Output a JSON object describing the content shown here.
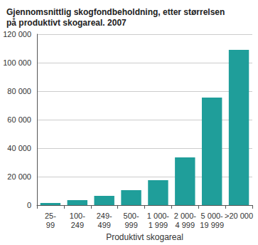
{
  "chart_data": {
    "type": "bar",
    "title": "Gjennomsnittlig skogfondbeholdning, etter størrelsen på produktivt skogareal. 2007",
    "x_label": "Produktivt skogareal",
    "categories": [
      "25-99",
      "100-249",
      "249-499",
      "500-999",
      "1 000-1 999",
      "2 000-4 999",
      "5 000-19 999",
      ">20 000"
    ],
    "values": [
      1500,
      3500,
      6500,
      10500,
      17500,
      33500,
      75500,
      109000
    ],
    "color": "#1f9e9a",
    "ylim": [
      0,
      120000
    ],
    "yticks": [
      0,
      {
        "value": 20000,
        "label": "20 000"
      },
      {
        "value": 40000,
        "label": "40 000"
      },
      {
        "value": 60000,
        "label": "60 000"
      },
      {
        "value": 80000,
        "label": "80 000"
      },
      {
        "value": 100000,
        "label": "100 000"
      },
      {
        "value": 120000,
        "label": "120 000"
      }
    ],
    "grid": true
  }
}
